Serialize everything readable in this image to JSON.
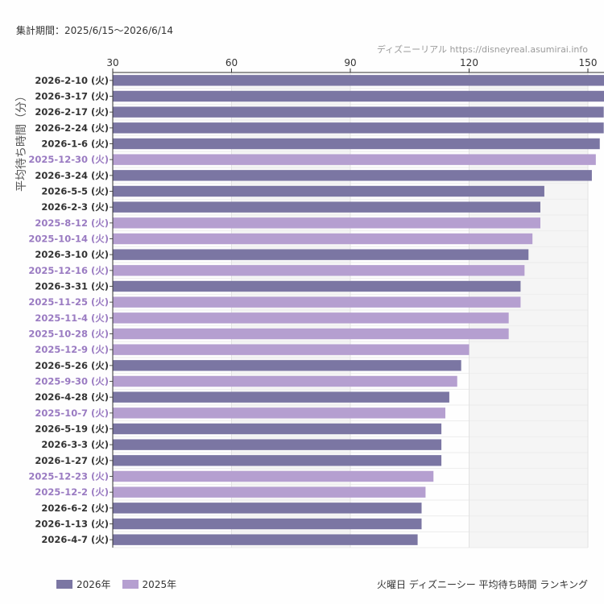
{
  "header": {
    "period": "集計期間：2025/6/15〜2026/6/14",
    "source": "ディズニーリアル https://disneyreal.asumirai.info"
  },
  "footer": {
    "title": "火曜日 ディズニーシー 平均待ち時間 ランキング"
  },
  "colors": {
    "2026年": "#7b76a3",
    "2025年": "#b59fd0",
    "label_2026年": "#333333",
    "label_2025年": "#9a7bc2"
  },
  "chart_data": {
    "type": "bar",
    "orientation": "horizontal",
    "ylabel": "平均待ち時間（分）",
    "xlim": [
      30,
      150
    ],
    "xticks": [
      30,
      60,
      90,
      120,
      150
    ],
    "grid": true,
    "legend_position": "bottom-left",
    "legend": [
      "2026年",
      "2025年"
    ],
    "categories": [
      "2026-2-10 (火)",
      "2026-3-17 (火)",
      "2026-2-17 (火)",
      "2026-2-24 (火)",
      "2026-1-6 (火)",
      "2025-12-30 (火)",
      "2026-3-24 (火)",
      "2026-5-5 (火)",
      "2026-2-3 (火)",
      "2025-8-12 (火)",
      "2025-10-14 (火)",
      "2026-3-10 (火)",
      "2025-12-16 (火)",
      "2026-3-31 (火)",
      "2025-11-25 (火)",
      "2025-11-4 (火)",
      "2025-10-28 (火)",
      "2025-12-9 (火)",
      "2026-5-26 (火)",
      "2025-9-30 (火)",
      "2026-4-28 (火)",
      "2025-10-7 (火)",
      "2026-5-19 (火)",
      "2026-3-3 (火)",
      "2026-1-27 (火)",
      "2025-12-23 (火)",
      "2025-12-2 (火)",
      "2026-6-2 (火)",
      "2026-1-13 (火)",
      "2026-4-7 (火)"
    ],
    "values": [
      156,
      155,
      154,
      154,
      153,
      152,
      151,
      139,
      138,
      138,
      136,
      135,
      134,
      133,
      133,
      130,
      130,
      120,
      118,
      117,
      115,
      114,
      113,
      113,
      113,
      111,
      109,
      108,
      108,
      107
    ],
    "series_year": [
      "2026年",
      "2026年",
      "2026年",
      "2026年",
      "2026年",
      "2025年",
      "2026年",
      "2026年",
      "2026年",
      "2025年",
      "2025年",
      "2026年",
      "2025年",
      "2026年",
      "2025年",
      "2025年",
      "2025年",
      "2025年",
      "2026年",
      "2025年",
      "2026年",
      "2025年",
      "2026年",
      "2026年",
      "2026年",
      "2025年",
      "2025年",
      "2026年",
      "2026年",
      "2026年"
    ]
  }
}
